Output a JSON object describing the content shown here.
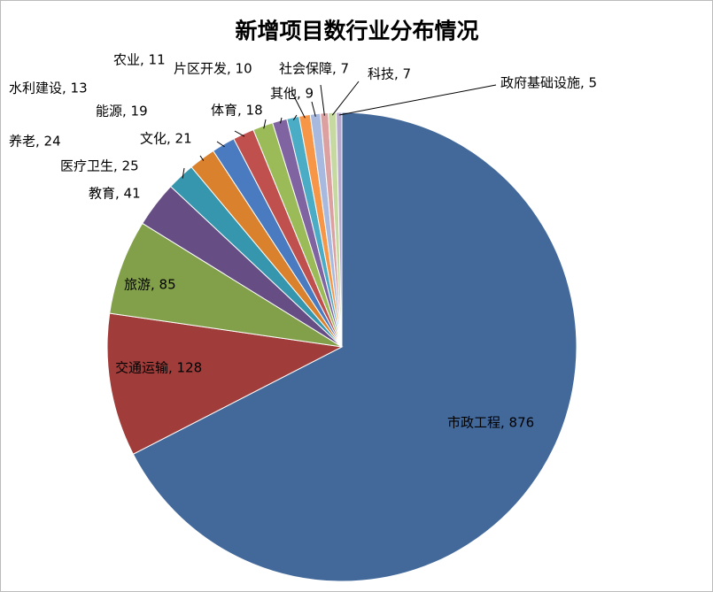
{
  "chart_data": {
    "type": "pie",
    "title": "新增项目数行业分布情况",
    "categories": [
      "市政工程",
      "交通运输",
      "旅游",
      "教育",
      "医疗卫生",
      "养老",
      "文化",
      "能源",
      "体育",
      "水利建设",
      "农业",
      "片区开发",
      "其他",
      "社会保障",
      "科技",
      "政府基础设施"
    ],
    "values": [
      876,
      128,
      85,
      41,
      25,
      24,
      21,
      19,
      18,
      13,
      11,
      10,
      9,
      7,
      7,
      5
    ],
    "value_labels": [
      "市政工程, 876",
      "交通运输, 128",
      "旅游, 85",
      "教育, 41",
      "医疗卫生, 25",
      "养老, 24",
      "文化, 21",
      "能源, 19",
      "体育, 18",
      "水利建设, 13",
      "农业, 11",
      "片区开发, 10",
      "其他, 9",
      "社会保障, 7",
      "科技, 7",
      "政府基础设施, 5"
    ],
    "colors": [
      "#43699b",
      "#a03d3a",
      "#82a04a",
      "#664e84",
      "#3596ad",
      "#d9812d",
      "#4a7bc0",
      "#c0504d",
      "#9bbb59",
      "#8064a2",
      "#4bacc6",
      "#f79646",
      "#a7b9de",
      "#dda0a0",
      "#c6d9a0",
      "#b7a9ce"
    ]
  }
}
